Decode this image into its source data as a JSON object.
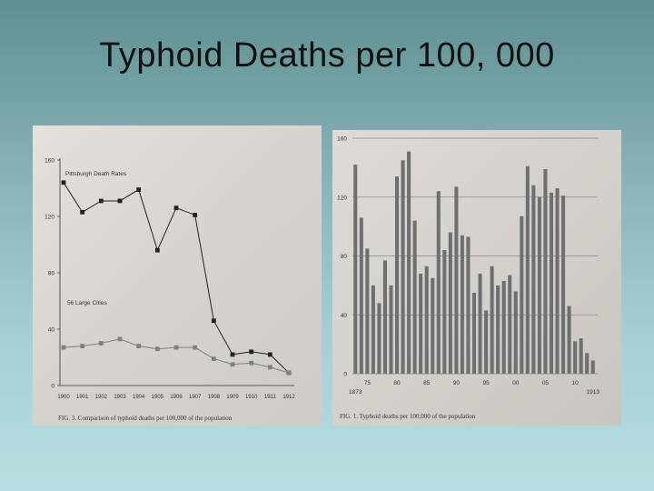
{
  "slide": {
    "title": "Typhoid Deaths per 100, 000"
  },
  "chart_data": [
    {
      "type": "line",
      "x": [
        "1900",
        "1901",
        "1902",
        "1903",
        "1904",
        "1905",
        "1906",
        "1907",
        "1908",
        "1909",
        "1910",
        "1911",
        "1912"
      ],
      "series": [
        {
          "name": "Pittsburgh Death Rates",
          "values": [
            144,
            123,
            131,
            131,
            139,
            96,
            126,
            121,
            46,
            22,
            24,
            22,
            9
          ]
        },
        {
          "name": "56 Large Cities",
          "values": [
            27,
            28,
            30,
            33,
            28,
            26,
            27,
            27,
            19,
            15,
            16,
            13,
            9
          ]
        }
      ],
      "y_ticks": [
        "0",
        "40",
        "80",
        "120",
        "160"
      ],
      "ylim": [
        0,
        160
      ],
      "caption": "FIG. 3. Comparison of typhoid deaths per 100,000 of the population",
      "colors": {
        "pittsburgh": "#222222",
        "cities": "#808080"
      }
    },
    {
      "type": "bar",
      "x": [
        1873,
        1874,
        1875,
        1876,
        1877,
        1878,
        1879,
        1880,
        1881,
        1882,
        1883,
        1884,
        1885,
        1886,
        1887,
        1888,
        1889,
        1890,
        1891,
        1892,
        1893,
        1894,
        1895,
        1896,
        1897,
        1898,
        1899,
        1900,
        1901,
        1902,
        1903,
        1904,
        1905,
        1906,
        1907,
        1908,
        1909,
        1910,
        1911,
        1912,
        1913
      ],
      "values": [
        142,
        106,
        85,
        60,
        48,
        77,
        60,
        134,
        145,
        151,
        104,
        68,
        73,
        65,
        124,
        84,
        96,
        127,
        94,
        93,
        55,
        68,
        43,
        73,
        60,
        63,
        67,
        56,
        107,
        141,
        128,
        120,
        139,
        123,
        126,
        121,
        46,
        22,
        24,
        14,
        9
      ],
      "x_tick_labels": [
        "1873",
        "75",
        "80",
        "85",
        "90",
        "95",
        "00",
        "05",
        "10",
        "1913"
      ],
      "y_ticks": [
        "0",
        "40",
        "80",
        "120",
        "160"
      ],
      "ylim": [
        0,
        160
      ],
      "caption": "FIG. 1. Typhoid deaths per 100,000 of the population",
      "colors": {
        "bar": "#6f6f6f"
      }
    }
  ]
}
